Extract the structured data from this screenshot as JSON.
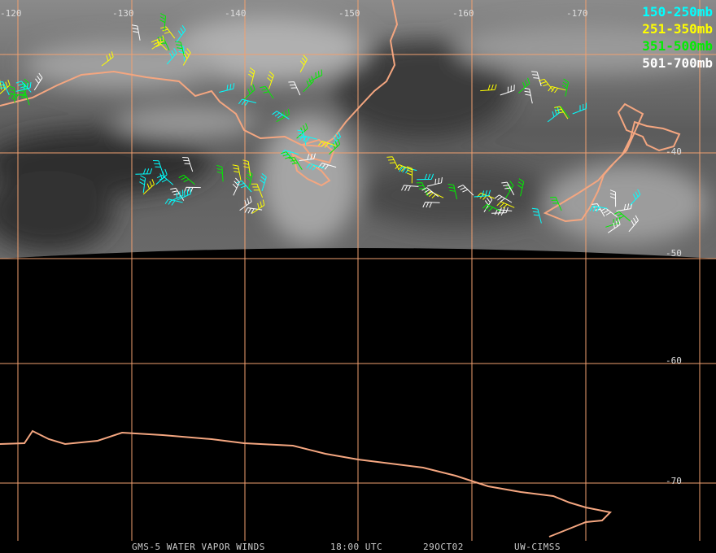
{
  "longitude_labels": [
    "-120",
    "-130",
    "-140",
    "-150",
    "-160",
    "-170"
  ],
  "latitude_labels": [
    "-40",
    "-50",
    "-60",
    "-70"
  ],
  "legend": [
    {
      "label": "150-250mb",
      "color": "#00ffff"
    },
    {
      "label": "251-350mb",
      "color": "#ffff00"
    },
    {
      "label": "351-500mb",
      "color": "#00ee00"
    },
    {
      "label": "501-700mb",
      "color": "#ffffff"
    }
  ],
  "footer": [
    "GMS-5 WATER VAPOR WINDS",
    "18:00 UTC",
    "29OCT02",
    "UW-CIMSS"
  ]
}
